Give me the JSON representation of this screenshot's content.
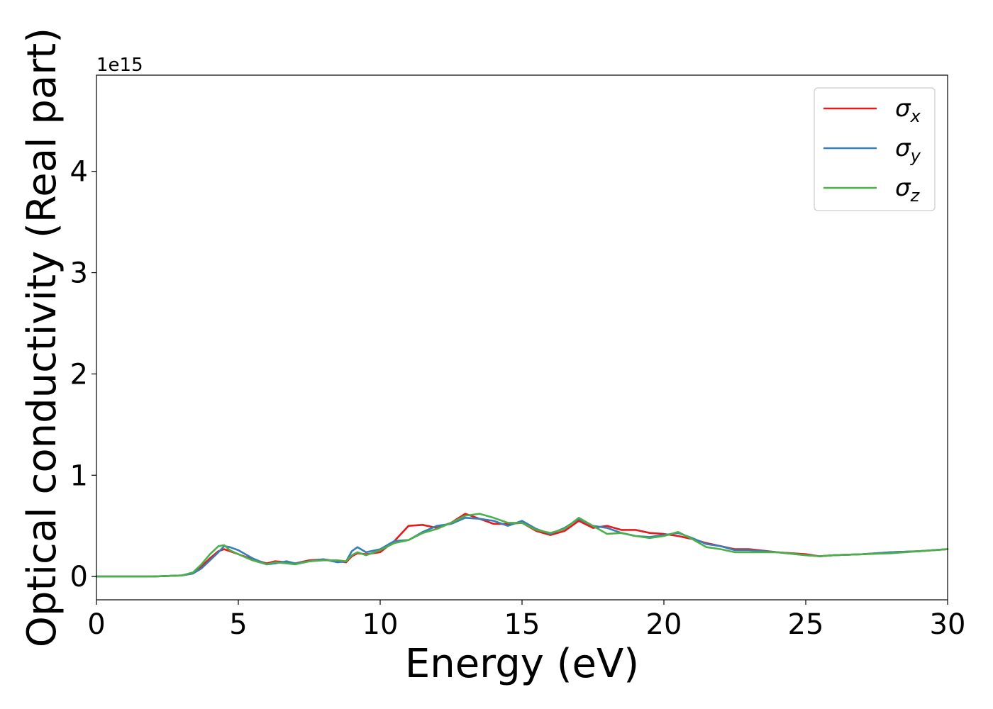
{
  "chart_data": {
    "type": "line",
    "title": "",
    "xlabel": "Energy (eV)",
    "ylabel": "Optical conductivity (Real part)",
    "y_offset_text": "1e15",
    "xlim": [
      0,
      30
    ],
    "ylim": [
      -0.23,
      4.95
    ],
    "xticks": [
      0,
      5,
      10,
      15,
      20,
      25,
      30
    ],
    "yticks": [
      0,
      1,
      2,
      3,
      4
    ],
    "grid": false,
    "legend_position": "top-right",
    "legend": [
      {
        "symbol": "σ",
        "sub": "x"
      },
      {
        "symbol": "σ",
        "sub": "y"
      },
      {
        "symbol": "σ",
        "sub": "z"
      }
    ],
    "series": [
      {
        "name": "σx",
        "color": "#e41a1c",
        "x": [
          0,
          1,
          2,
          3,
          3.4,
          3.7,
          4.0,
          4.3,
          4.5,
          4.7,
          5.0,
          5.5,
          6.0,
          6.3,
          6.7,
          7.0,
          7.5,
          8.0,
          8.5,
          8.8,
          9.0,
          9.2,
          9.5,
          10.0,
          10.5,
          11.0,
          11.5,
          12.0,
          12.5,
          13.0,
          13.5,
          14.0,
          14.5,
          15.0,
          15.5,
          16.0,
          16.5,
          17.0,
          17.5,
          18.0,
          18.5,
          19.0,
          19.5,
          20.0,
          20.5,
          21.0,
          21.5,
          22.0,
          22.5,
          23.0,
          24.0,
          25.0,
          25.5,
          26.0,
          27.0,
          28.0,
          29.0,
          30.0
        ],
        "y": [
          0,
          0,
          0,
          0.01,
          0.03,
          0.1,
          0.18,
          0.25,
          0.27,
          0.25,
          0.22,
          0.17,
          0.13,
          0.15,
          0.14,
          0.13,
          0.16,
          0.17,
          0.15,
          0.14,
          0.2,
          0.23,
          0.22,
          0.24,
          0.35,
          0.5,
          0.51,
          0.48,
          0.53,
          0.62,
          0.57,
          0.52,
          0.52,
          0.53,
          0.45,
          0.41,
          0.45,
          0.55,
          0.48,
          0.5,
          0.46,
          0.46,
          0.43,
          0.42,
          0.4,
          0.37,
          0.33,
          0.3,
          0.27,
          0.27,
          0.24,
          0.22,
          0.2,
          0.21,
          0.22,
          0.24,
          0.25,
          0.27
        ]
      },
      {
        "name": "σy",
        "color": "#377eb8",
        "x": [
          0,
          1,
          2,
          3,
          3.4,
          3.7,
          4.0,
          4.3,
          4.5,
          4.7,
          5.0,
          5.5,
          6.0,
          6.3,
          6.7,
          7.0,
          7.5,
          8.0,
          8.5,
          8.8,
          9.0,
          9.2,
          9.5,
          10.0,
          10.5,
          11.0,
          11.5,
          12.0,
          12.5,
          13.0,
          13.5,
          14.0,
          14.5,
          15.0,
          15.5,
          16.0,
          16.5,
          17.0,
          17.5,
          18.0,
          18.5,
          19.0,
          19.5,
          20.0,
          20.5,
          21.0,
          21.5,
          22.0,
          22.5,
          23.0,
          24.0,
          25.0,
          25.5,
          26.0,
          27.0,
          28.0,
          29.0,
          30.0
        ],
        "y": [
          0,
          0,
          0,
          0.01,
          0.03,
          0.08,
          0.16,
          0.24,
          0.3,
          0.29,
          0.26,
          0.18,
          0.12,
          0.13,
          0.15,
          0.13,
          0.15,
          0.17,
          0.14,
          0.15,
          0.25,
          0.29,
          0.24,
          0.27,
          0.35,
          0.36,
          0.44,
          0.5,
          0.52,
          0.58,
          0.57,
          0.55,
          0.5,
          0.55,
          0.47,
          0.42,
          0.48,
          0.57,
          0.5,
          0.48,
          0.43,
          0.4,
          0.39,
          0.41,
          0.43,
          0.38,
          0.32,
          0.3,
          0.26,
          0.26,
          0.24,
          0.21,
          0.2,
          0.21,
          0.22,
          0.24,
          0.25,
          0.27
        ]
      },
      {
        "name": "σz",
        "color": "#4daf4a",
        "x": [
          0,
          1,
          2,
          3,
          3.4,
          3.7,
          4.0,
          4.3,
          4.5,
          4.7,
          5.0,
          5.5,
          6.0,
          6.3,
          6.7,
          7.0,
          7.5,
          8.0,
          8.5,
          8.8,
          9.0,
          9.2,
          9.5,
          10.0,
          10.5,
          11.0,
          11.5,
          12.0,
          12.5,
          13.0,
          13.5,
          14.0,
          14.5,
          15.0,
          15.5,
          16.0,
          16.5,
          17.0,
          17.5,
          18.0,
          18.5,
          19.0,
          19.5,
          20.0,
          20.5,
          21.0,
          21.5,
          22.0,
          22.5,
          23.0,
          24.0,
          25.0,
          25.5,
          26.0,
          27.0,
          28.0,
          29.0,
          30.0
        ],
        "y": [
          0,
          0,
          0,
          0.01,
          0.04,
          0.12,
          0.22,
          0.3,
          0.31,
          0.26,
          0.22,
          0.16,
          0.12,
          0.14,
          0.13,
          0.12,
          0.15,
          0.16,
          0.16,
          0.15,
          0.21,
          0.24,
          0.21,
          0.26,
          0.33,
          0.36,
          0.43,
          0.47,
          0.53,
          0.6,
          0.62,
          0.58,
          0.53,
          0.53,
          0.46,
          0.43,
          0.47,
          0.58,
          0.5,
          0.42,
          0.43,
          0.4,
          0.38,
          0.4,
          0.44,
          0.37,
          0.29,
          0.27,
          0.24,
          0.24,
          0.24,
          0.21,
          0.2,
          0.21,
          0.22,
          0.23,
          0.25,
          0.27
        ]
      }
    ]
  }
}
